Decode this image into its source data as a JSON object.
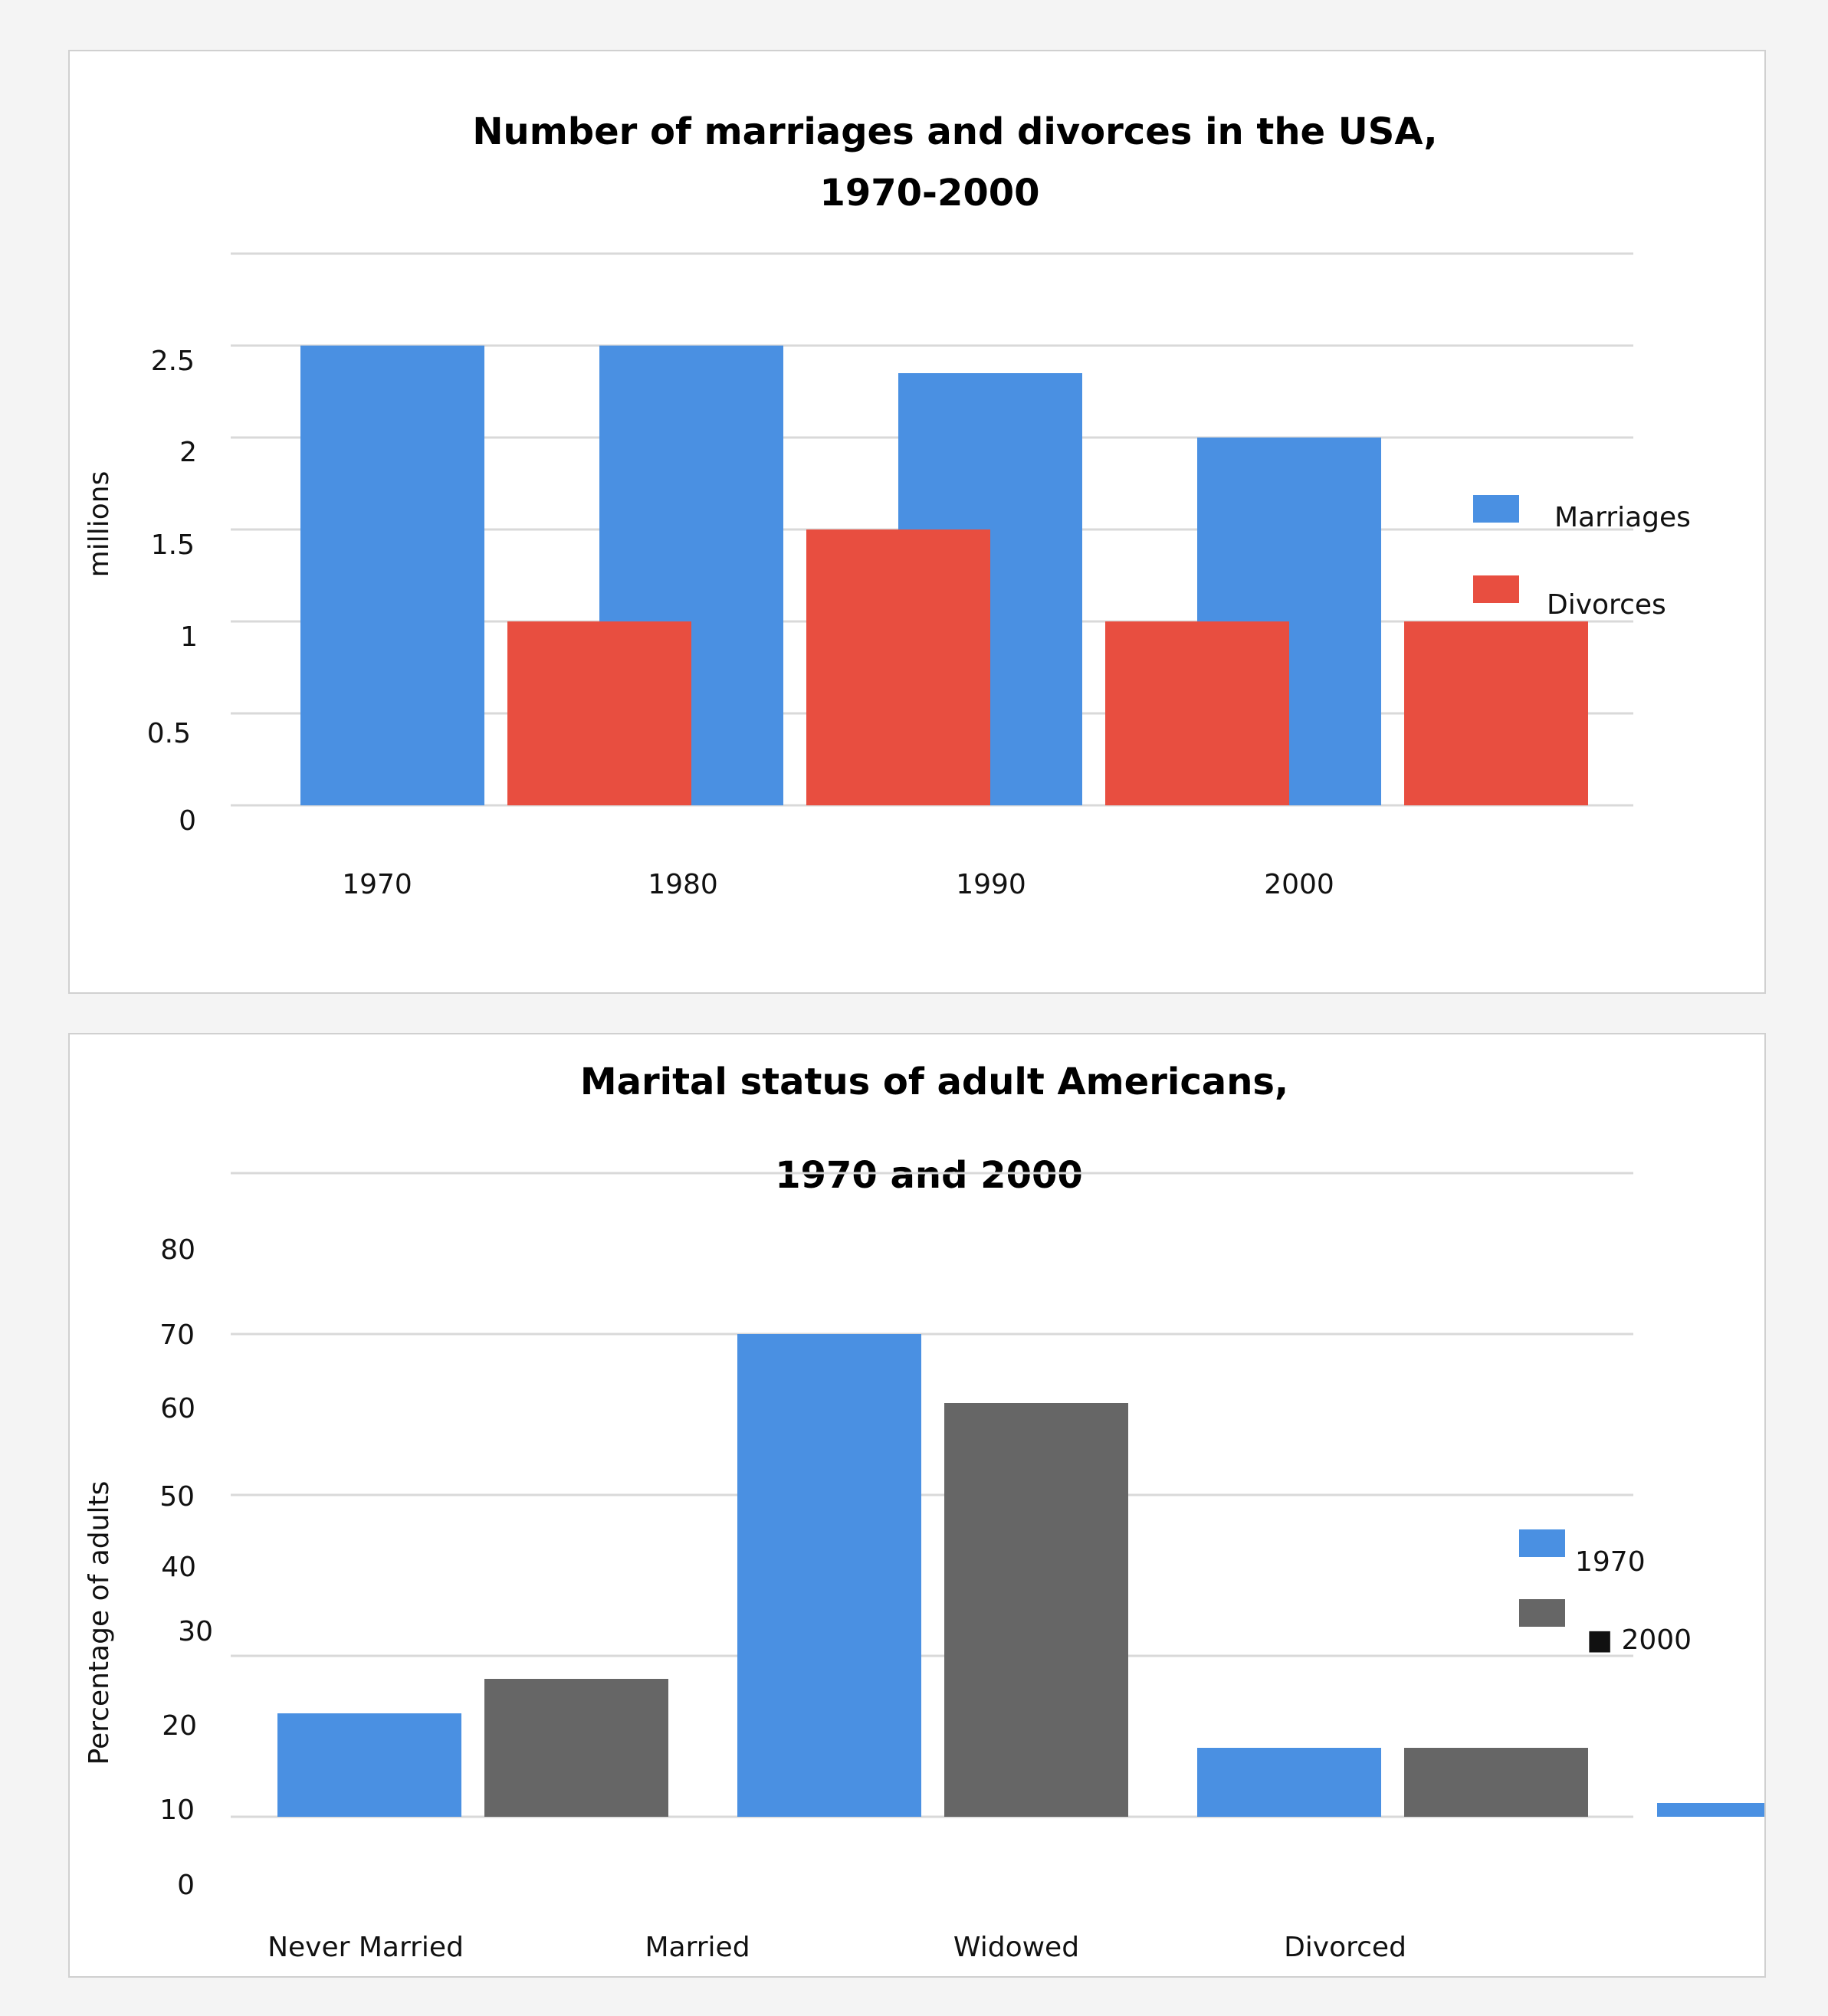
{
  "colors": {
    "blue": "#4a90e2",
    "red": "#e84e40",
    "gray": "#666666",
    "grid": "#d9d9d9",
    "background": "#f4f4f4"
  },
  "chart_data": [
    {
      "type": "bar",
      "title_line1": "Number of marriages and  divorces in the USA,",
      "title_line2": "1970-2000",
      "ylabel": "millions",
      "xlabel": "",
      "ylim": [
        0,
        3
      ],
      "y_ticks": [
        "0",
        "0.5",
        "1",
        "1.5",
        "2",
        "2.5"
      ],
      "categories": [
        "1970",
        "1980",
        "1990",
        "2000"
      ],
      "series": [
        {
          "name": "Marriages",
          "color": "#4a90e2",
          "values": [
            2.5,
            2.5,
            2.35,
            2.0
          ]
        },
        {
          "name": "Divorces",
          "color": "#e84e40",
          "values": [
            1.0,
            1.5,
            1.0,
            1.0
          ]
        }
      ],
      "legend": "right",
      "grid": true
    },
    {
      "type": "bar",
      "title_line1": "Marital status of adult Americans,",
      "title_line2": "1970 and 2000",
      "ylabel": "Percentage of adults",
      "xlabel": "",
      "ylim": [
        0,
        80
      ],
      "y_ticks": [
        "0",
        "10",
        "20",
        "30",
        "40",
        "50",
        "60",
        "70",
        "80"
      ],
      "categories": [
        "Never Married",
        "Married",
        "Widowed",
        "Divorced"
      ],
      "series": [
        {
          "name": "1970",
          "color": "#4a90e2",
          "values": [
            15,
            70,
            10,
            2
          ]
        },
        {
          "name": "2000",
          "color": "#666666",
          "values": [
            20,
            60,
            10,
            10
          ]
        }
      ],
      "legend_labels": [
        "1970",
        "■ 2000"
      ],
      "legend": "right",
      "grid": true
    }
  ]
}
